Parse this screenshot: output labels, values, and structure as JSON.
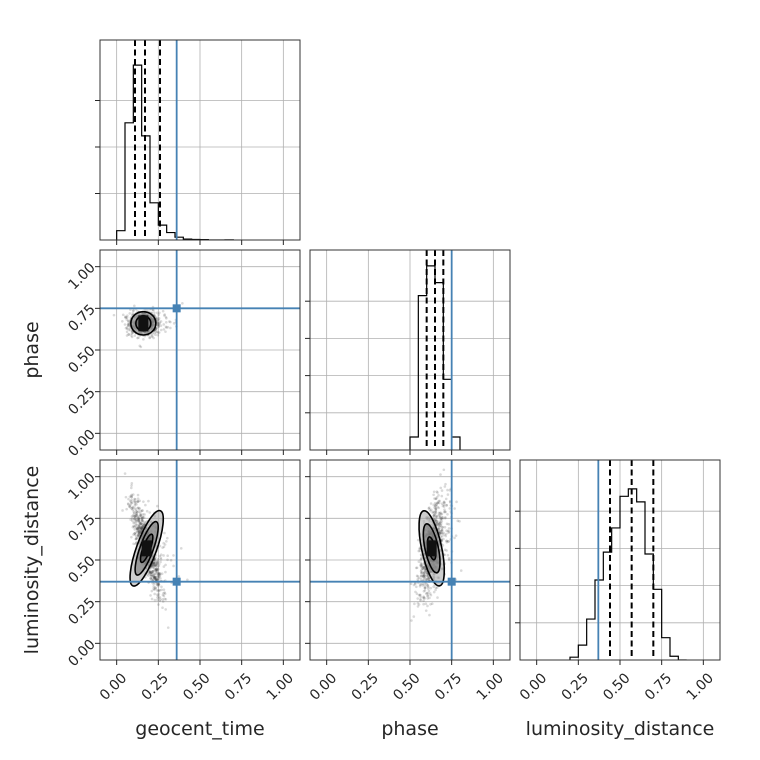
{
  "chart_data": {
    "type": "corner",
    "parameters": [
      "geocent_time",
      "phase",
      "luminosity_distance"
    ],
    "axis_labels": [
      "geocent_time",
      "phase",
      "luminosity_distance"
    ],
    "range": [
      -0.1,
      1.1
    ],
    "ticks": [
      0.0,
      0.25,
      0.5,
      0.75,
      1.0
    ],
    "tick_labels": [
      "0.00",
      "0.25",
      "0.50",
      "0.75",
      "1.00"
    ],
    "grid": true,
    "truth_color": "#4682b4",
    "truths": {
      "geocent_time": 0.36,
      "phase": 0.75,
      "luminosity_distance": 0.37
    },
    "quantiles": {
      "geocent_time": [
        0.11,
        0.17,
        0.26
      ],
      "phase": [
        0.6,
        0.65,
        0.7
      ],
      "luminosity_distance": [
        0.44,
        0.57,
        0.7
      ]
    },
    "histograms": {
      "geocent_time": {
        "bin_edges": [
          0.0,
          0.05,
          0.1,
          0.15,
          0.2,
          0.25,
          0.3,
          0.35,
          0.4,
          0.45,
          0.5,
          0.55,
          0.6,
          0.65,
          0.7
        ],
        "density": [
          0.05,
          0.63,
          0.94,
          0.56,
          0.2,
          0.08,
          0.04,
          0.015,
          0.005,
          0.003,
          0.002,
          0.0,
          0.0,
          0.001
        ],
        "ymax": 1.0,
        "ytick_values": [
          0.25,
          0.5,
          0.75
        ]
      },
      "phase": {
        "bin_edges": [
          0.5,
          0.55,
          0.6,
          0.65,
          0.7,
          0.75,
          0.8
        ],
        "density": [
          0.07,
          0.83,
          0.99,
          0.9,
          0.38,
          0.07
        ],
        "ymax": 1.0,
        "ytick_values": [
          0.2,
          0.4,
          0.6,
          0.8
        ]
      },
      "luminosity_distance": {
        "bin_edges": [
          0.2,
          0.25,
          0.3,
          0.35,
          0.4,
          0.45,
          0.5,
          0.55,
          0.6,
          0.65,
          0.7,
          0.75,
          0.8,
          0.85,
          0.9
        ],
        "density": [
          0.015,
          0.08,
          0.22,
          0.43,
          0.58,
          0.71,
          0.88,
          0.92,
          0.85,
          0.57,
          0.38,
          0.12,
          0.02,
          0.0
        ],
        "ymax": 1.0,
        "ytick_values": [
          0.2,
          0.4,
          0.6,
          0.8
        ]
      }
    },
    "pairs": [
      {
        "x": "geocent_time",
        "y": "phase",
        "mean": [
          0.16,
          0.66
        ],
        "sd": [
          0.042,
          0.035
        ],
        "corr": 0.0,
        "contours": [
          {
            "level": 0.39,
            "rx": 0.022,
            "ry": 0.02,
            "angle": 0
          },
          {
            "level": 0.86,
            "rx": 0.045,
            "ry": 0.045,
            "angle": 0
          },
          {
            "level": 0.99,
            "rx": 0.075,
            "ry": 0.07,
            "angle": 0
          }
        ]
      },
      {
        "x": "geocent_time",
        "y": "luminosity_distance",
        "mean": [
          0.18,
          0.57
        ],
        "sd": [
          0.045,
          0.14
        ],
        "corr": -0.85,
        "contours": [
          {
            "level": 0.39,
            "rx": 0.022,
            "ry": 0.09,
            "angle": 20
          },
          {
            "level": 0.86,
            "rx": 0.04,
            "ry": 0.17,
            "angle": 20
          },
          {
            "level": 0.99,
            "rx": 0.06,
            "ry": 0.24,
            "angle": 20
          }
        ]
      },
      {
        "x": "phase",
        "y": "luminosity_distance",
        "mean": [
          0.63,
          0.57
        ],
        "sd": [
          0.04,
          0.14
        ],
        "corr": 0.55,
        "contours": [
          {
            "level": 0.39,
            "rx": 0.02,
            "ry": 0.07,
            "angle": -12
          },
          {
            "level": 0.86,
            "rx": 0.04,
            "ry": 0.15,
            "angle": -12
          },
          {
            "level": 0.99,
            "rx": 0.06,
            "ry": 0.23,
            "angle": -12
          }
        ]
      }
    ]
  }
}
